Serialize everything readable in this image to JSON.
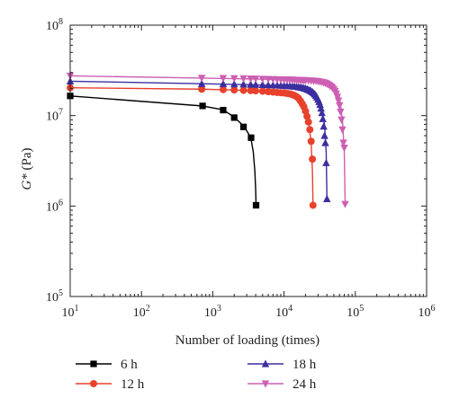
{
  "chart_data": {
    "type": "scatter",
    "title": "",
    "xlabel": "Number of loading (times)",
    "ylabel": "G* (Pa)",
    "ylabel_italic_part": "G*",
    "ylabel_rest": " (Pa)",
    "x_scale": "log",
    "y_scale": "log",
    "xlim": [
      10,
      1000000
    ],
    "ylim": [
      100000,
      100000000
    ],
    "x_ticks": [
      {
        "value": 10,
        "base": "10",
        "exp": "1"
      },
      {
        "value": 100,
        "base": "10",
        "exp": "2"
      },
      {
        "value": 1000,
        "base": "10",
        "exp": "3"
      },
      {
        "value": 10000,
        "base": "10",
        "exp": "4"
      },
      {
        "value": 100000,
        "base": "10",
        "exp": "5"
      },
      {
        "value": 1000000,
        "base": "10",
        "exp": "6"
      }
    ],
    "y_ticks": [
      {
        "value": 100000,
        "base": "10",
        "exp": "5"
      },
      {
        "value": 1000000,
        "base": "10",
        "exp": "6"
      },
      {
        "value": 10000000,
        "base": "10",
        "exp": "7"
      },
      {
        "value": 100000000,
        "base": "10",
        "exp": "8"
      }
    ],
    "grid": false,
    "legend_position": "bottom",
    "series": [
      {
        "name": "6 h",
        "color": "#000000",
        "marker": "square",
        "curve_x": [
          10,
          700,
          1400,
          2000,
          2700,
          3400,
          3700,
          3900,
          4000,
          4050
        ],
        "curve_y": [
          16500000,
          12800000,
          11600000,
          9600000,
          7700000,
          5800000,
          4000000,
          2400000,
          1500000,
          1020000
        ],
        "x": [
          10,
          720,
          1400,
          2000,
          2700,
          3450,
          4050
        ],
        "y": [
          16500000,
          12800000,
          11500000,
          9500000,
          7500000,
          5700000,
          1020000
        ]
      },
      {
        "name": "12 h",
        "color": "#e8412c",
        "marker": "circle",
        "curve_x": [
          10,
          700,
          2000,
          5000,
          10000,
          15000,
          19000,
          22000,
          24000,
          25000,
          25500
        ],
        "curve_y": [
          20300000,
          19600000,
          19200000,
          18600000,
          17800000,
          16200000,
          13000000,
          9000000,
          5000000,
          2500000,
          1020000
        ],
        "x": [
          10,
          700,
          1400,
          2000,
          2700,
          3400,
          4000,
          5000,
          6000,
          7000,
          8000,
          9000,
          10000,
          11000,
          12000,
          13000,
          14000,
          15000,
          16000,
          17000,
          18000,
          19000,
          20000,
          21000,
          22000,
          23000,
          24000,
          25000,
          25500
        ],
        "y": [
          20300000,
          19600000,
          19400000,
          19200000,
          19000000,
          18900000,
          18800000,
          18600000,
          18400000,
          18200000,
          18000000,
          17900000,
          17800000,
          17600000,
          17400000,
          17100000,
          16700000,
          16200000,
          15500000,
          14500000,
          13500000,
          12500000,
          11200000,
          9800000,
          8500000,
          7000000,
          5200000,
          3300000,
          1020000
        ]
      },
      {
        "name": "18 h",
        "color": "#3b2fa0",
        "marker": "triangle-up",
        "curve_x": [
          10,
          700,
          3000,
          8000,
          15000,
          22000,
          28000,
          33000,
          37000,
          39000,
          40000
        ],
        "curve_y": [
          24000000,
          22500000,
          22000000,
          21500000,
          20800000,
          19500000,
          17000000,
          13000000,
          8000000,
          4000000,
          1200000
        ],
        "x": [
          10,
          700,
          1400,
          2000,
          2700,
          3400,
          4000,
          5000,
          6000,
          7000,
          8000,
          9000,
          10000,
          11000,
          12000,
          13000,
          14000,
          15000,
          16000,
          17000,
          18000,
          19000,
          20000,
          21000,
          22000,
          23000,
          24000,
          25000,
          26000,
          27000,
          28000,
          29000,
          30000,
          31000,
          32000,
          33000,
          34000,
          35000,
          36000,
          37000,
          38000,
          39000,
          40000
        ],
        "y": [
          24000000,
          22500000,
          22400000,
          22300000,
          22200000,
          22100000,
          22000000,
          21900000,
          21800000,
          21700000,
          21600000,
          21500000,
          21400000,
          21300000,
          21200000,
          21100000,
          21000000,
          20900000,
          20700000,
          20500000,
          20300000,
          20100000,
          19900000,
          19600000,
          19300000,
          19000000,
          18600000,
          18200000,
          17700000,
          17200000,
          16600000,
          15900000,
          15100000,
          14200000,
          13200000,
          12000000,
          10700000,
          9200000,
          7600000,
          6000000,
          5000000,
          3000000,
          1200000
        ]
      },
      {
        "name": "24 h",
        "color": "#cc5fb3",
        "marker": "triangle-down",
        "curve_x": [
          10,
          700,
          3000,
          10000,
          20000,
          35000,
          50000,
          60000,
          66000,
          70000,
          72000
        ],
        "curve_y": [
          27500000,
          26000000,
          25500000,
          25000000,
          24500000,
          23500000,
          21000000,
          16000000,
          9000000,
          4000000,
          1050000
        ],
        "x": [
          10,
          700,
          1400,
          2000,
          2700,
          3400,
          4000,
          5000,
          6000,
          7000,
          8000,
          9000,
          10000,
          11000,
          12000,
          13000,
          14000,
          15000,
          16000,
          17000,
          18000,
          19000,
          20000,
          22000,
          24000,
          26000,
          28000,
          30000,
          32000,
          34000,
          36000,
          38000,
          40000,
          42000,
          44000,
          46000,
          48000,
          50000,
          52000,
          54000,
          56000,
          58000,
          60000,
          62000,
          64000,
          66000,
          68000,
          70000,
          72000
        ],
        "y": [
          27500000,
          26000000,
          25900000,
          25800000,
          25700000,
          25600000,
          25500000,
          25400000,
          25300000,
          25200000,
          25100000,
          25050000,
          25000000,
          24950000,
          24900000,
          24850000,
          24800000,
          24750000,
          24700000,
          24650000,
          24600000,
          24550000,
          24500000,
          24400000,
          24300000,
          24200000,
          24100000,
          23900000,
          23700000,
          23500000,
          23200000,
          22900000,
          22500000,
          22000000,
          21500000,
          20900000,
          20200000,
          19400000,
          18500000,
          17400000,
          16100000,
          14600000,
          12900000,
          11000000,
          9000000,
          7000000,
          5000000,
          4400000,
          1050000
        ]
      }
    ]
  }
}
